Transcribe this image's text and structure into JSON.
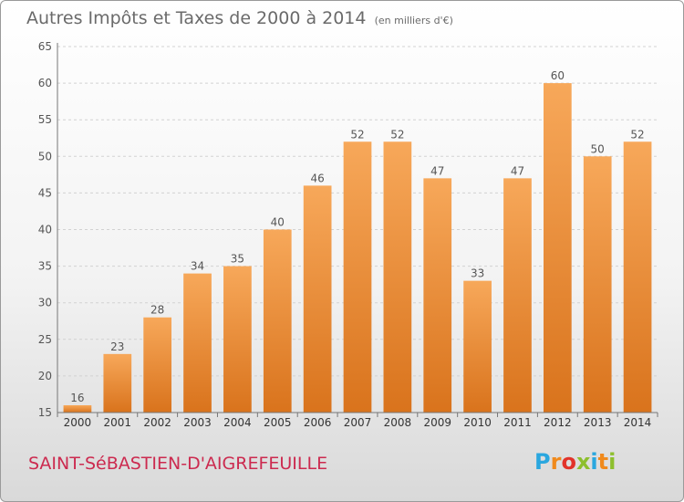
{
  "title": "Autres Impôts et Taxes de 2000 à 2014",
  "subtitle": "(en milliers d'€)",
  "location": "SAINT-SéBASTIEN-D'AIGREFEUILLE",
  "logo": {
    "letters": [
      "P",
      "r",
      "o",
      "x",
      "i",
      "t",
      "i"
    ],
    "colors": [
      "#2aa7df",
      "#f08a1c",
      "#e2332a",
      "#8dbf2d",
      "#2aa7df",
      "#f08a1c",
      "#8dbf2d"
    ]
  },
  "chart_data": {
    "type": "bar",
    "title": "Autres Impôts et Taxes de 2000 à 2014",
    "subtitle": "(en milliers d'€)",
    "categories": [
      "2000",
      "2001",
      "2002",
      "2003",
      "2004",
      "2005",
      "2006",
      "2007",
      "2008",
      "2009",
      "2010",
      "2011",
      "2012",
      "2013",
      "2014"
    ],
    "values": [
      16,
      23,
      28,
      34,
      35,
      40,
      46,
      52,
      52,
      47,
      33,
      47,
      60,
      50,
      52
    ],
    "ylim": [
      15,
      65
    ],
    "yticks": [
      15,
      20,
      25,
      30,
      35,
      40,
      45,
      50,
      55,
      60,
      65
    ],
    "grid": true,
    "bar_color": "#f08c2c"
  }
}
